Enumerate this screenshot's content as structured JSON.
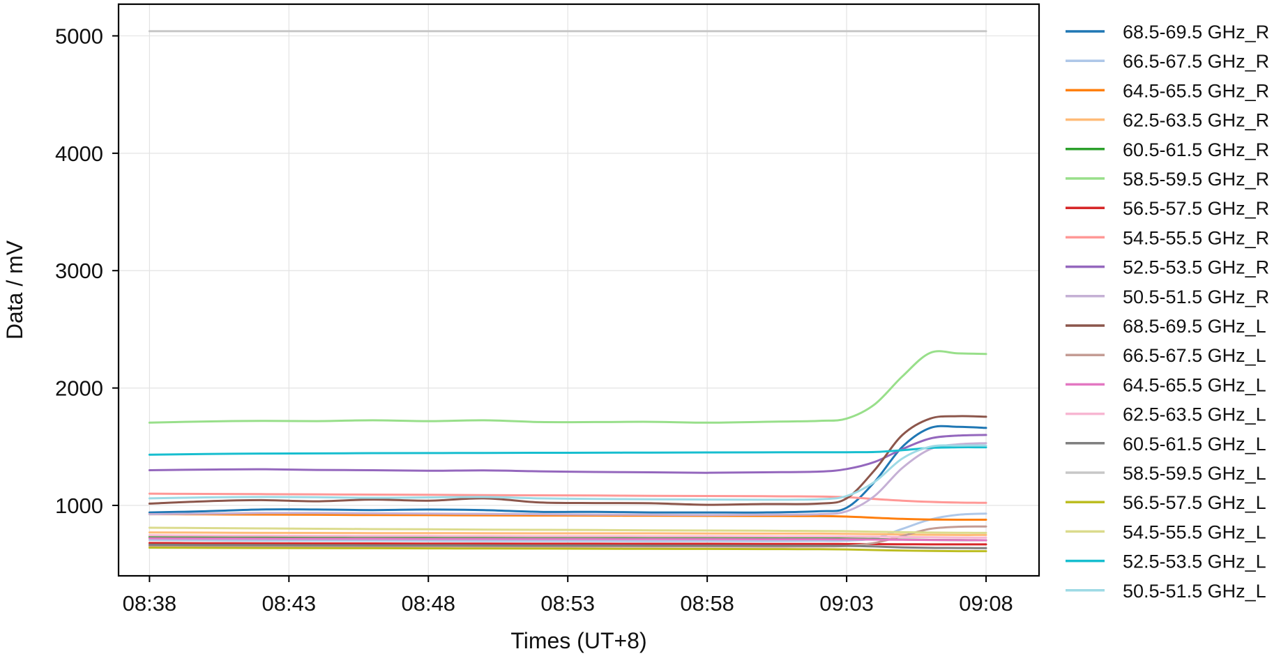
{
  "chart_data": {
    "type": "line",
    "title": "",
    "xlabel": "Times (UT+8)",
    "ylabel": "Data / mV",
    "x_ticks": [
      "08:38",
      "08:43",
      "08:48",
      "08:53",
      "08:58",
      "09:03",
      "09:08"
    ],
    "x_tick_minutes": [
      0,
      5,
      10,
      15,
      20,
      25,
      30
    ],
    "xlim": [
      "08:36:53",
      "09:09:53"
    ],
    "y_ticks": [
      1000,
      2000,
      3000,
      4000,
      5000
    ],
    "ylim": [
      400,
      5270
    ],
    "grid": true,
    "legend_position": "right, outside plot",
    "x": [
      0,
      2,
      4,
      6,
      8,
      10,
      12,
      14,
      16,
      18,
      20,
      22,
      24,
      25,
      26,
      27,
      28,
      29,
      30
    ],
    "series": [
      {
        "name": "68.5-69.5 GHz_R",
        "color": "#1f77b4",
        "values": [
          940,
          950,
          965,
          965,
          960,
          965,
          960,
          945,
          945,
          940,
          940,
          940,
          950,
          980,
          1200,
          1500,
          1660,
          1670,
          1660
        ]
      },
      {
        "name": "66.5-67.5 GHz_R",
        "color": "#aec7e8",
        "values": [
          705,
          702,
          700,
          700,
          700,
          698,
          697,
          697,
          697,
          696,
          697,
          696,
          698,
          700,
          720,
          800,
          880,
          920,
          930
        ]
      },
      {
        "name": "64.5-65.5 GHz_R",
        "color": "#ff7f0e",
        "values": [
          925,
          924,
          922,
          920,
          918,
          917,
          915,
          914,
          913,
          912,
          911,
          910,
          909,
          905,
          895,
          885,
          880,
          878,
          878
        ]
      },
      {
        "name": "62.5-63.5 GHz_R",
        "color": "#ffbb78",
        "values": [
          770,
          768,
          766,
          765,
          764,
          764,
          763,
          762,
          762,
          762,
          761,
          760,
          760,
          758,
          755,
          752,
          750,
          748,
          748
        ]
      },
      {
        "name": "60.5-61.5 GHz_R",
        "color": "#2ca02c",
        "values": [
          730,
          728,
          727,
          726,
          726,
          725,
          724,
          723,
          723,
          722,
          721,
          720,
          719,
          717,
          713,
          709,
          706,
          704,
          703
        ]
      },
      {
        "name": "58.5-59.5 GHz_R",
        "color": "#98df8a",
        "values": [
          1705,
          1715,
          1720,
          1718,
          1725,
          1718,
          1725,
          1710,
          1710,
          1712,
          1705,
          1712,
          1720,
          1740,
          1860,
          2100,
          2300,
          2295,
          2290
        ]
      },
      {
        "name": "56.5-57.5 GHz_R",
        "color": "#d62728",
        "values": [
          680,
          678,
          677,
          676,
          676,
          675,
          675,
          674,
          674,
          673,
          673,
          672,
          672,
          671,
          670,
          669,
          668,
          668,
          668
        ]
      },
      {
        "name": "54.5-55.5 GHz_R",
        "color": "#ff9896",
        "values": [
          1100,
          1098,
          1096,
          1094,
          1092,
          1090,
          1088,
          1086,
          1084,
          1082,
          1080,
          1078,
          1076,
          1070,
          1055,
          1040,
          1030,
          1024,
          1022
        ]
      },
      {
        "name": "52.5-53.5 GHz_R",
        "color": "#9467bd",
        "values": [
          1300,
          1305,
          1308,
          1302,
          1300,
          1295,
          1298,
          1290,
          1285,
          1282,
          1278,
          1282,
          1288,
          1310,
          1370,
          1480,
          1570,
          1595,
          1600
        ]
      },
      {
        "name": "50.5-51.5 GHz_R",
        "color": "#c5b0d5",
        "values": [
          925,
          930,
          935,
          935,
          932,
          930,
          928,
          925,
          922,
          920,
          918,
          920,
          925,
          950,
          1080,
          1320,
          1480,
          1520,
          1530
        ]
      },
      {
        "name": "68.5-69.5 GHz_L",
        "color": "#8c564b",
        "values": [
          1015,
          1035,
          1045,
          1035,
          1050,
          1040,
          1060,
          1025,
          1020,
          1018,
          1005,
          1012,
          1015,
          1060,
          1300,
          1600,
          1740,
          1760,
          1755
        ]
      },
      {
        "name": "66.5-67.5 GHz_L",
        "color": "#c49c94",
        "values": [
          655,
          654,
          653,
          653,
          652,
          652,
          651,
          651,
          650,
          650,
          650,
          649,
          650,
          655,
          680,
          740,
          800,
          818,
          820
        ]
      },
      {
        "name": "64.5-65.5 GHz_L",
        "color": "#e377c2",
        "values": [
          720,
          718,
          717,
          716,
          716,
          715,
          715,
          714,
          714,
          713,
          713,
          712,
          712,
          711,
          709,
          707,
          705,
          704,
          703
        ]
      },
      {
        "name": "62.5-63.5 GHz_L",
        "color": "#f7b6d2",
        "values": [
          745,
          743,
          742,
          741,
          740,
          740,
          739,
          738,
          738,
          737,
          737,
          736,
          736,
          735,
          733,
          730,
          728,
          726,
          725
        ]
      },
      {
        "name": "60.5-61.5 GHz_L",
        "color": "#7f7f7f",
        "values": [
          665,
          663,
          662,
          661,
          660,
          660,
          659,
          658,
          658,
          657,
          657,
          656,
          656,
          655,
          650,
          642,
          638,
          637,
          636
        ]
      },
      {
        "name": "58.5-59.5 GHz_L",
        "color": "#c7c7c7",
        "values": [
          5040,
          5040,
          5040,
          5040,
          5040,
          5040,
          5040,
          5040,
          5040,
          5040,
          5040,
          5040,
          5040,
          5040,
          5040,
          5040,
          5040,
          5040,
          5040
        ]
      },
      {
        "name": "56.5-57.5 GHz_L",
        "color": "#bcbd22",
        "values": [
          640,
          638,
          637,
          636,
          635,
          634,
          633,
          632,
          631,
          630,
          629,
          628,
          627,
          625,
          620,
          615,
          612,
          610,
          610
        ]
      },
      {
        "name": "54.5-55.5 GHz_L",
        "color": "#dbdb8d",
        "values": [
          810,
          807,
          804,
          801,
          798,
          796,
          794,
          792,
          790,
          788,
          786,
          784,
          782,
          780,
          776,
          772,
          769,
          767,
          766
        ]
      },
      {
        "name": "52.5-53.5 GHz_L",
        "color": "#17becf",
        "values": [
          1432,
          1438,
          1442,
          1443,
          1445,
          1446,
          1447,
          1448,
          1449,
          1450,
          1451,
          1452,
          1453,
          1453,
          1455,
          1470,
          1490,
          1495,
          1495
        ]
      },
      {
        "name": "50.5-51.5 GHz_L",
        "color": "#9edae5",
        "values": [
          1060,
          1068,
          1072,
          1070,
          1065,
          1068,
          1072,
          1060,
          1055,
          1052,
          1050,
          1048,
          1052,
          1080,
          1200,
          1400,
          1500,
          1510,
          1510
        ]
      }
    ]
  }
}
